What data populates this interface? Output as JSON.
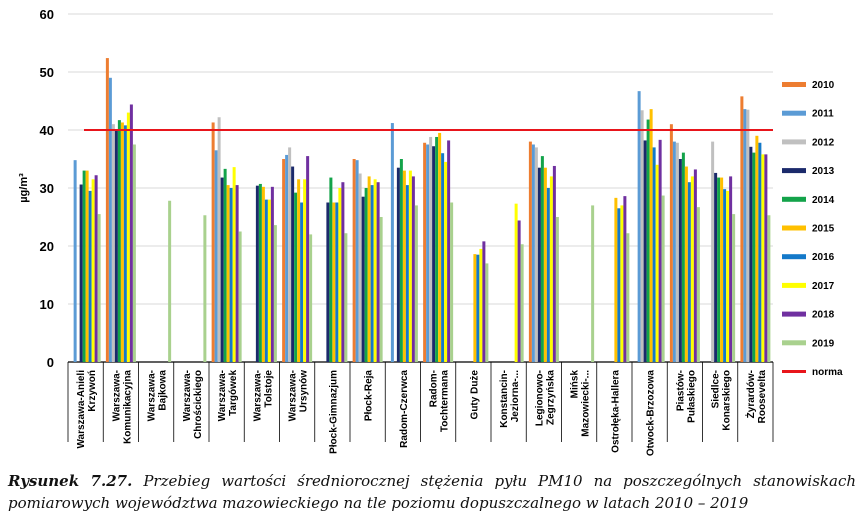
{
  "chart_data": {
    "type": "bar",
    "ylabel": "µg/m³",
    "ylim": [
      0,
      60
    ],
    "yticks": [
      0,
      10,
      20,
      30,
      40,
      50,
      60
    ],
    "grid": true,
    "legend_position": "right",
    "norma": {
      "name": "norma",
      "value": 40,
      "color": "#e8151b"
    },
    "categories": [
      [
        "Warszawa-Anieli",
        "Krzywoń"
      ],
      [
        "Warszawa-",
        "Komunikacyjna"
      ],
      [
        "Warszawa-",
        "Bajkowa"
      ],
      [
        "Warszawa-",
        "Chrościckiego"
      ],
      [
        "Warszawa-",
        "Targówek"
      ],
      [
        "Warszawa-",
        "Tolstoje"
      ],
      [
        "Warszawa-",
        "Ursynów"
      ],
      [
        "Płock-Gimnazjum"
      ],
      [
        "Płock-Reja"
      ],
      [
        "Radom-Czerwca"
      ],
      [
        "Radom-",
        "Tochtermana"
      ],
      [
        "Guty Duże"
      ],
      [
        "Konstancin-",
        "Jeziorna-..."
      ],
      [
        "Legionowo-",
        "Zegrzyńska"
      ],
      [
        "Mińsk",
        "Mazowiecki-..."
      ],
      [
        "Ostrołęka-Hallera"
      ],
      [
        "Otwock-Brzozowa"
      ],
      [
        "Piastów-",
        "Pułaskiego"
      ],
      [
        "Siedlce-",
        "Konarskiego"
      ],
      [
        "Żyrardów-",
        "Roosevelta"
      ]
    ],
    "series": [
      {
        "name": "2010",
        "color": "#ed7d31",
        "values": [
          null,
          52.4,
          null,
          null,
          41.3,
          null,
          35.0,
          null,
          35.0,
          null,
          37.8,
          null,
          null,
          38.0,
          null,
          null,
          null,
          41.0,
          null,
          45.8
        ]
      },
      {
        "name": "2011",
        "color": "#5b9bd5",
        "values": [
          34.8,
          49.0,
          null,
          null,
          36.5,
          null,
          35.7,
          null,
          34.8,
          41.2,
          37.5,
          null,
          null,
          37.5,
          null,
          null,
          46.7,
          38.0,
          null,
          43.6
        ]
      },
      {
        "name": "2012",
        "color": "#c0c0c0",
        "values": [
          null,
          41.0,
          null,
          null,
          42.2,
          null,
          37.0,
          null,
          32.5,
          null,
          38.8,
          null,
          null,
          37.0,
          null,
          null,
          43.4,
          37.8,
          38.0,
          43.5
        ]
      },
      {
        "name": "2013",
        "color": "#1b2a6b",
        "values": [
          30.6,
          40.0,
          null,
          null,
          31.8,
          30.4,
          33.7,
          27.5,
          28.5,
          33.5,
          37.2,
          null,
          null,
          33.5,
          null,
          null,
          38.2,
          35.0,
          32.6,
          37.1
        ]
      },
      {
        "name": "2014",
        "color": "#13a34a",
        "values": [
          33.0,
          41.7,
          null,
          null,
          33.3,
          30.7,
          29.2,
          31.8,
          30.0,
          35.0,
          38.8,
          null,
          null,
          35.5,
          null,
          null,
          41.8,
          36.1,
          31.8,
          36.1
        ]
      },
      {
        "name": "2015",
        "color": "#ffc000",
        "values": [
          33.0,
          41.3,
          null,
          null,
          30.5,
          30.2,
          31.5,
          27.5,
          32.0,
          33.0,
          39.5,
          18.6,
          null,
          33.5,
          null,
          28.3,
          43.6,
          33.7,
          31.8,
          39.0
        ]
      },
      {
        "name": "2016",
        "color": "#1479c9",
        "values": [
          29.5,
          40.8,
          null,
          null,
          30.0,
          28.0,
          27.5,
          27.5,
          30.5,
          30.5,
          36.0,
          18.5,
          null,
          30.0,
          null,
          26.5,
          37.0,
          31.0,
          29.8,
          37.8
        ]
      },
      {
        "name": "2017",
        "color": "#ffff00",
        "values": [
          31.5,
          43.0,
          null,
          null,
          33.6,
          28.0,
          31.5,
          30.0,
          31.5,
          33.0,
          34.5,
          19.5,
          27.3,
          32.0,
          null,
          27.0,
          34.0,
          32.0,
          29.5,
          35.8
        ]
      },
      {
        "name": "2018",
        "color": "#7030a0",
        "values": [
          32.2,
          44.4,
          null,
          null,
          30.5,
          30.2,
          35.5,
          31.0,
          31.0,
          32.0,
          38.2,
          20.8,
          24.4,
          33.8,
          null,
          28.6,
          38.3,
          33.2,
          32.0,
          35.8
        ]
      },
      {
        "name": "2019",
        "color": "#a9d18e",
        "values": [
          25.5,
          37.5,
          27.8,
          25.3,
          22.5,
          23.6,
          22.0,
          22.2,
          25.0,
          27.0,
          27.5,
          17.0,
          20.3,
          25.0,
          27.0,
          22.2,
          28.7,
          26.7,
          25.5,
          25.3
        ]
      }
    ]
  },
  "caption": {
    "label": "Rysunek 7.27.",
    "text": " Przebieg wartości średniorocznej stężenia pyłu PM10 na poszczególnych stanowiskach pomiarowych województwa mazowieckiego na tle poziomu dopuszczalnego w latach 2010 – 2019"
  }
}
